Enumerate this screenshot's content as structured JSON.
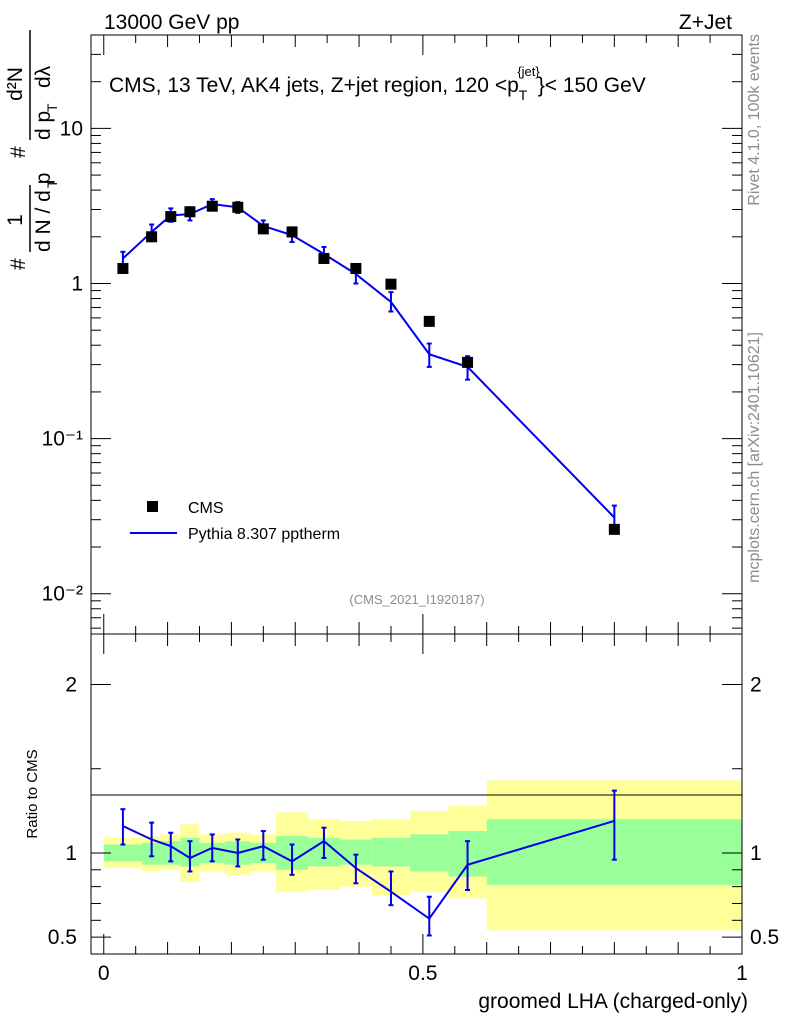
{
  "header": {
    "left": "13000 GeV pp",
    "right": "Z+Jet"
  },
  "side_text": {
    "rivet": "Rivet 4.1.0,  100k events",
    "source": "mcplots.cern.ch [arXiv:2401.10621]"
  },
  "colors": {
    "mc_line": "#0000ee",
    "data_marker": "#000000",
    "band_inner": "#99ff99",
    "band_outer": "#ffff99",
    "watermark": "#8c8c8c"
  },
  "chart_data": [
    {
      "type": "scatter",
      "role": "main",
      "title": "CMS, 13 TeV, AK4 jets, Z+jet region, 120 <p_T^{jet}< 150 GeV",
      "title_parts": {
        "prefix": "CMS, 13 TeV, AK4 jets, Z+jet region, 120 <p",
        "sub": "T",
        "sup": "{jet}",
        "suffix": "}< 150 GeV"
      },
      "ylabel": "1/N dN/dp_T d^2N/dp_T dλ",
      "ylabel_parts": {
        "hash": "#",
        "one": "1",
        "dN": "d N / d p",
        "T": "T",
        "d2N": "d²N",
        "dpT": "d p",
        "dlambda": "dλ"
      },
      "yscale": "log",
      "ylim": [
        0.0055,
        40
      ],
      "xlim": [
        -0.02,
        1.0
      ],
      "ytick_labels": {
        "1e-2": "10⁻²",
        "1e-1": "10⁻¹",
        "1": "1",
        "10": "10"
      },
      "watermark": "(CMS_2021_I1920187)",
      "legend": {
        "position": "middle-left",
        "data_label": "CMS",
        "mc_label": "Pythia 8.307 pptherm"
      },
      "series": [
        {
          "name": "CMS",
          "style": "marker",
          "points": [
            {
              "x": 0.03,
              "y": 1.25
            },
            {
              "x": 0.075,
              "y": 2.0
            },
            {
              "x": 0.105,
              "y": 2.7
            },
            {
              "x": 0.135,
              "y": 2.9
            },
            {
              "x": 0.17,
              "y": 3.15
            },
            {
              "x": 0.21,
              "y": 3.1
            },
            {
              "x": 0.25,
              "y": 2.25
            },
            {
              "x": 0.295,
              "y": 2.15
            },
            {
              "x": 0.345,
              "y": 1.45
            },
            {
              "x": 0.395,
              "y": 1.25
            },
            {
              "x": 0.45,
              "y": 0.99
            },
            {
              "x": 0.51,
              "y": 0.57
            },
            {
              "x": 0.57,
              "y": 0.31
            },
            {
              "x": 0.8,
              "y": 0.026
            }
          ]
        },
        {
          "name": "Pythia 8.307 pptherm",
          "style": "line",
          "points": [
            {
              "x": 0.03,
              "y": 1.45,
              "lo": 1.3,
              "hi": 1.6
            },
            {
              "x": 0.075,
              "y": 2.15,
              "lo": 1.95,
              "hi": 2.4
            },
            {
              "x": 0.105,
              "y": 2.75,
              "lo": 2.5,
              "hi": 3.05
            },
            {
              "x": 0.135,
              "y": 2.8,
              "lo": 2.55,
              "hi": 3.1
            },
            {
              "x": 0.17,
              "y": 3.25,
              "lo": 3.0,
              "hi": 3.5
            },
            {
              "x": 0.21,
              "y": 3.1,
              "lo": 2.85,
              "hi": 3.35
            },
            {
              "x": 0.25,
              "y": 2.35,
              "lo": 2.15,
              "hi": 2.55
            },
            {
              "x": 0.295,
              "y": 2.05,
              "lo": 1.85,
              "hi": 2.3
            },
            {
              "x": 0.345,
              "y": 1.55,
              "lo": 1.38,
              "hi": 1.72
            },
            {
              "x": 0.395,
              "y": 1.15,
              "lo": 1.0,
              "hi": 1.3
            },
            {
              "x": 0.45,
              "y": 0.76,
              "lo": 0.66,
              "hi": 0.88
            },
            {
              "x": 0.51,
              "y": 0.35,
              "lo": 0.29,
              "hi": 0.41
            },
            {
              "x": 0.57,
              "y": 0.29,
              "lo": 0.24,
              "hi": 0.34
            },
            {
              "x": 0.8,
              "y": 0.031,
              "lo": 0.025,
              "hi": 0.037
            }
          ]
        }
      ]
    },
    {
      "type": "line",
      "role": "ratio",
      "ylabel": "Ratio to CMS",
      "xlabel": "groomed LHA (charged-only)",
      "ylim": [
        0.4,
        2.3
      ],
      "xlim": [
        -0.02,
        1.0
      ],
      "yticks": [
        0.5,
        1,
        2
      ],
      "ytick_labels": [
        "0.5",
        "1",
        "2"
      ],
      "xticks": [
        0,
        0.5,
        1
      ],
      "xtick_labels": [
        "0",
        "0.5",
        "1"
      ],
      "bins": [
        {
          "x0": 0.0,
          "x1": 0.06,
          "inner": [
            0.95,
            1.05
          ],
          "outer": [
            0.91,
            1.09
          ]
        },
        {
          "x0": 0.06,
          "x1": 0.09,
          "inner": [
            0.93,
            1.06
          ],
          "outer": [
            0.89,
            1.1
          ]
        },
        {
          "x0": 0.09,
          "x1": 0.12,
          "inner": [
            0.93,
            1.07
          ],
          "outer": [
            0.9,
            1.11
          ]
        },
        {
          "x0": 0.12,
          "x1": 0.15,
          "inner": [
            0.92,
            1.09
          ],
          "outer": [
            0.83,
            1.17
          ]
        },
        {
          "x0": 0.15,
          "x1": 0.19,
          "inner": [
            0.94,
            1.06
          ],
          "outer": [
            0.89,
            1.11
          ]
        },
        {
          "x0": 0.19,
          "x1": 0.23,
          "inner": [
            0.93,
            1.07
          ],
          "outer": [
            0.87,
            1.12
          ]
        },
        {
          "x0": 0.23,
          "x1": 0.27,
          "inner": [
            0.94,
            1.06
          ],
          "outer": [
            0.89,
            1.11
          ]
        },
        {
          "x0": 0.27,
          "x1": 0.32,
          "inner": [
            0.9,
            1.1
          ],
          "outer": [
            0.77,
            1.24
          ]
        },
        {
          "x0": 0.32,
          "x1": 0.37,
          "inner": [
            0.92,
            1.09
          ],
          "outer": [
            0.78,
            1.2
          ]
        },
        {
          "x0": 0.37,
          "x1": 0.42,
          "inner": [
            0.93,
            1.08
          ],
          "outer": [
            0.8,
            1.19
          ]
        },
        {
          "x0": 0.42,
          "x1": 0.48,
          "inner": [
            0.92,
            1.09
          ],
          "outer": [
            0.75,
            1.2
          ]
        },
        {
          "x0": 0.48,
          "x1": 0.54,
          "inner": [
            0.89,
            1.11
          ],
          "outer": [
            0.77,
            1.25
          ]
        },
        {
          "x0": 0.54,
          "x1": 0.6,
          "inner": [
            0.86,
            1.13
          ],
          "outer": [
            0.73,
            1.28
          ]
        },
        {
          "x0": 0.6,
          "x1": 1.0,
          "inner": [
            0.81,
            1.2
          ],
          "outer": [
            0.54,
            1.43
          ]
        }
      ],
      "series": [
        {
          "name": "Pythia 8.307 pptherm / CMS",
          "points": [
            {
              "x": 0.03,
              "y": 1.16,
              "lo": 1.05,
              "hi": 1.26
            },
            {
              "x": 0.075,
              "y": 1.08,
              "lo": 0.98,
              "hi": 1.18
            },
            {
              "x": 0.105,
              "y": 1.04,
              "lo": 0.95,
              "hi": 1.12
            },
            {
              "x": 0.135,
              "y": 0.97,
              "lo": 0.89,
              "hi": 1.07
            },
            {
              "x": 0.17,
              "y": 1.03,
              "lo": 0.95,
              "hi": 1.11
            },
            {
              "x": 0.21,
              "y": 1.0,
              "lo": 0.92,
              "hi": 1.08
            },
            {
              "x": 0.25,
              "y": 1.04,
              "lo": 0.96,
              "hi": 1.13
            },
            {
              "x": 0.295,
              "y": 0.95,
              "lo": 0.87,
              "hi": 1.05
            },
            {
              "x": 0.345,
              "y": 1.07,
              "lo": 0.97,
              "hi": 1.15
            },
            {
              "x": 0.395,
              "y": 0.91,
              "lo": 0.82,
              "hi": 0.99
            },
            {
              "x": 0.45,
              "y": 0.77,
              "lo": 0.69,
              "hi": 0.89
            },
            {
              "x": 0.51,
              "y": 0.61,
              "lo": 0.51,
              "hi": 0.74
            },
            {
              "x": 0.57,
              "y": 0.93,
              "lo": 0.78,
              "hi": 1.07
            },
            {
              "x": 0.8,
              "y": 1.19,
              "lo": 0.96,
              "hi": 1.37
            }
          ]
        }
      ]
    }
  ]
}
